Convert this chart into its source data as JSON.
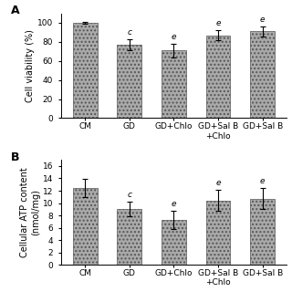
{
  "panel_A": {
    "categories": [
      "CM",
      "GD",
      "GD+Chlo",
      "GD+Sal B\n+Chlo",
      "GD+Sal B"
    ],
    "values": [
      100,
      77,
      71,
      87,
      91
    ],
    "errors": [
      1,
      6,
      7,
      5,
      5
    ],
    "ylabel": "Cell viability (%)",
    "ylim": [
      0,
      110
    ],
    "yticks": [
      0,
      20,
      40,
      60,
      80,
      100
    ],
    "significance": [
      "",
      "c",
      "e",
      "e",
      "e"
    ],
    "panel_label": "A"
  },
  "panel_B": {
    "categories": [
      "CM",
      "GD",
      "GD+Chlo",
      "GD+Sal B\n+Chlo",
      "GD+Sal B"
    ],
    "values": [
      12.4,
      9.0,
      7.3,
      10.4,
      10.7
    ],
    "errors": [
      1.5,
      1.2,
      1.5,
      1.7,
      1.7
    ],
    "ylabel": "Cellular ATP content\n(nmol/mg)",
    "ylim": [
      0,
      17
    ],
    "yticks": [
      0,
      2,
      4,
      6,
      8,
      10,
      12,
      14,
      16
    ],
    "significance": [
      "",
      "c",
      "e",
      "e",
      "e"
    ],
    "panel_label": "B"
  },
  "bar_color": "#aaaaaa",
  "bar_hatch": "....",
  "bar_edgecolor": "#555555",
  "bar_width": 0.55,
  "tick_fontsize": 6.5,
  "label_fontsize": 7,
  "sig_fontsize": 6.5,
  "panel_label_fontsize": 9,
  "xtick_labels_A": [
    "CM",
    "GD",
    "GD+Chlo",
    "GD+Sal B\n+Chlo",
    "GD+Sal B"
  ],
  "xtick_labels_B": [
    "CM",
    "GD",
    "GD+Chlo",
    "GD+Sal B\n+Chlo",
    "GD+Sal B"
  ]
}
